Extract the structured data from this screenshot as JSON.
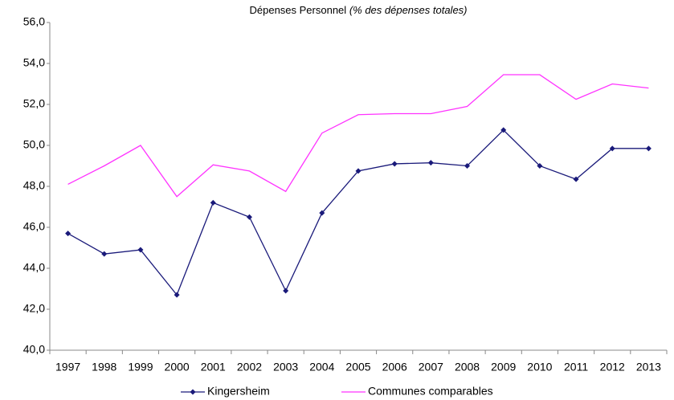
{
  "chart_data": {
    "type": "line",
    "title": "Dépenses Personnel",
    "subtitle": "(% des dépenses totales)",
    "categories": [
      "1997",
      "1998",
      "1999",
      "2000",
      "2001",
      "2002",
      "2003",
      "2004",
      "2005",
      "2006",
      "2007",
      "2008",
      "2009",
      "2010",
      "2011",
      "2012",
      "2013"
    ],
    "series": [
      {
        "name": "Kingersheim",
        "color": "#1a1a7a",
        "marker": "diamond",
        "values": [
          45.7,
          44.7,
          44.9,
          42.7,
          47.2,
          46.5,
          42.9,
          46.7,
          48.75,
          49.1,
          49.15,
          49.0,
          50.75,
          49.0,
          48.35,
          49.85,
          49.85
        ]
      },
      {
        "name": "Communes comparables",
        "color": "#ff33ff",
        "values": [
          48.1,
          49.0,
          50.0,
          47.5,
          49.05,
          48.75,
          47.75,
          50.6,
          51.5,
          51.55,
          51.55,
          51.9,
          53.45,
          53.45,
          52.25,
          53.0,
          52.8
        ]
      }
    ],
    "ylim": [
      40,
      56
    ],
    "yticks": [
      {
        "value": 40,
        "label": "40,0"
      },
      {
        "value": 42,
        "label": "42,0"
      },
      {
        "value": 44,
        "label": "44,0"
      },
      {
        "value": 46,
        "label": "46,0"
      },
      {
        "value": 48,
        "label": "48,0"
      },
      {
        "value": 50,
        "label": "50,0"
      },
      {
        "value": 52,
        "label": "52,0"
      },
      {
        "value": 54,
        "label": "54,0"
      },
      {
        "value": 56,
        "label": "56,0"
      }
    ],
    "grid": false,
    "legend": "bottom"
  }
}
